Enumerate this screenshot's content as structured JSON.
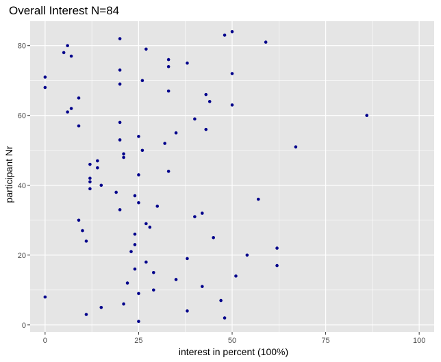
{
  "chart_data": {
    "type": "scatter",
    "title": "Overall Interest N=84",
    "xlabel": "interest in percent (100%)",
    "ylabel": "participant Nr",
    "xlim": [
      -4,
      104
    ],
    "ylim": [
      -2,
      87
    ],
    "xticks": [
      0,
      25,
      50,
      75,
      100
    ],
    "yticks": [
      0,
      20,
      40,
      60,
      80
    ],
    "xtick_labels": [
      "0",
      "25",
      "50",
      "75",
      "100"
    ],
    "ytick_labels": [
      "0",
      "20",
      "40",
      "60",
      "80"
    ],
    "grid": true,
    "panel_color": "#e5e5e5",
    "grid_color": "#ffffff",
    "point_color": "#00008b",
    "points": [
      {
        "x": 25,
        "y": 1
      },
      {
        "x": 48,
        "y": 2
      },
      {
        "x": 11,
        "y": 3
      },
      {
        "x": 38,
        "y": 4
      },
      {
        "x": 15,
        "y": 5
      },
      {
        "x": 21,
        "y": 6
      },
      {
        "x": 47,
        "y": 7
      },
      {
        "x": 0,
        "y": 8
      },
      {
        "x": 25,
        "y": 9
      },
      {
        "x": 29,
        "y": 10
      },
      {
        "x": 42,
        "y": 11
      },
      {
        "x": 22,
        "y": 12
      },
      {
        "x": 35,
        "y": 13
      },
      {
        "x": 51,
        "y": 14
      },
      {
        "x": 29,
        "y": 15
      },
      {
        "x": 24,
        "y": 16
      },
      {
        "x": 62,
        "y": 17
      },
      {
        "x": 27,
        "y": 18
      },
      {
        "x": 38,
        "y": 19
      },
      {
        "x": 54,
        "y": 20
      },
      {
        "x": 23,
        "y": 21
      },
      {
        "x": 62,
        "y": 22
      },
      {
        "x": 24,
        "y": 23
      },
      {
        "x": 11,
        "y": 24
      },
      {
        "x": 45,
        "y": 25
      },
      {
        "x": 24,
        "y": 26
      },
      {
        "x": 10,
        "y": 27
      },
      {
        "x": 28,
        "y": 28
      },
      {
        "x": 27,
        "y": 29
      },
      {
        "x": 9,
        "y": 30
      },
      {
        "x": 40,
        "y": 31
      },
      {
        "x": 42,
        "y": 32
      },
      {
        "x": 20,
        "y": 33
      },
      {
        "x": 30,
        "y": 34
      },
      {
        "x": 25,
        "y": 35
      },
      {
        "x": 57,
        "y": 36
      },
      {
        "x": 24,
        "y": 37
      },
      {
        "x": 19,
        "y": 38
      },
      {
        "x": 12,
        "y": 39
      },
      {
        "x": 15,
        "y": 40
      },
      {
        "x": 12,
        "y": 41
      },
      {
        "x": 12,
        "y": 42
      },
      {
        "x": 25,
        "y": 43
      },
      {
        "x": 33,
        "y": 44
      },
      {
        "x": 14,
        "y": 45
      },
      {
        "x": 12,
        "y": 46
      },
      {
        "x": 14,
        "y": 47
      },
      {
        "x": 21,
        "y": 48
      },
      {
        "x": 21,
        "y": 49
      },
      {
        "x": 26,
        "y": 50
      },
      {
        "x": 67,
        "y": 51
      },
      {
        "x": 32,
        "y": 52
      },
      {
        "x": 20,
        "y": 53
      },
      {
        "x": 25,
        "y": 54
      },
      {
        "x": 35,
        "y": 55
      },
      {
        "x": 43,
        "y": 56
      },
      {
        "x": 9,
        "y": 57
      },
      {
        "x": 20,
        "y": 58
      },
      {
        "x": 40,
        "y": 59
      },
      {
        "x": 86,
        "y": 60
      },
      {
        "x": 6,
        "y": 61
      },
      {
        "x": 7,
        "y": 62
      },
      {
        "x": 50,
        "y": 63
      },
      {
        "x": 44,
        "y": 64
      },
      {
        "x": 9,
        "y": 65
      },
      {
        "x": 43,
        "y": 66
      },
      {
        "x": 33,
        "y": 67
      },
      {
        "x": 0,
        "y": 68
      },
      {
        "x": 20,
        "y": 69
      },
      {
        "x": 26,
        "y": 70
      },
      {
        "x": 0,
        "y": 71
      },
      {
        "x": 50,
        "y": 72
      },
      {
        "x": 20,
        "y": 73
      },
      {
        "x": 33,
        "y": 74
      },
      {
        "x": 38,
        "y": 75
      },
      {
        "x": 33,
        "y": 76
      },
      {
        "x": 7,
        "y": 77
      },
      {
        "x": 5,
        "y": 78
      },
      {
        "x": 27,
        "y": 79
      },
      {
        "x": 6,
        "y": 80
      },
      {
        "x": 59,
        "y": 81
      },
      {
        "x": 20,
        "y": 82
      },
      {
        "x": 48,
        "y": 83
      },
      {
        "x": 50,
        "y": 84
      }
    ]
  }
}
